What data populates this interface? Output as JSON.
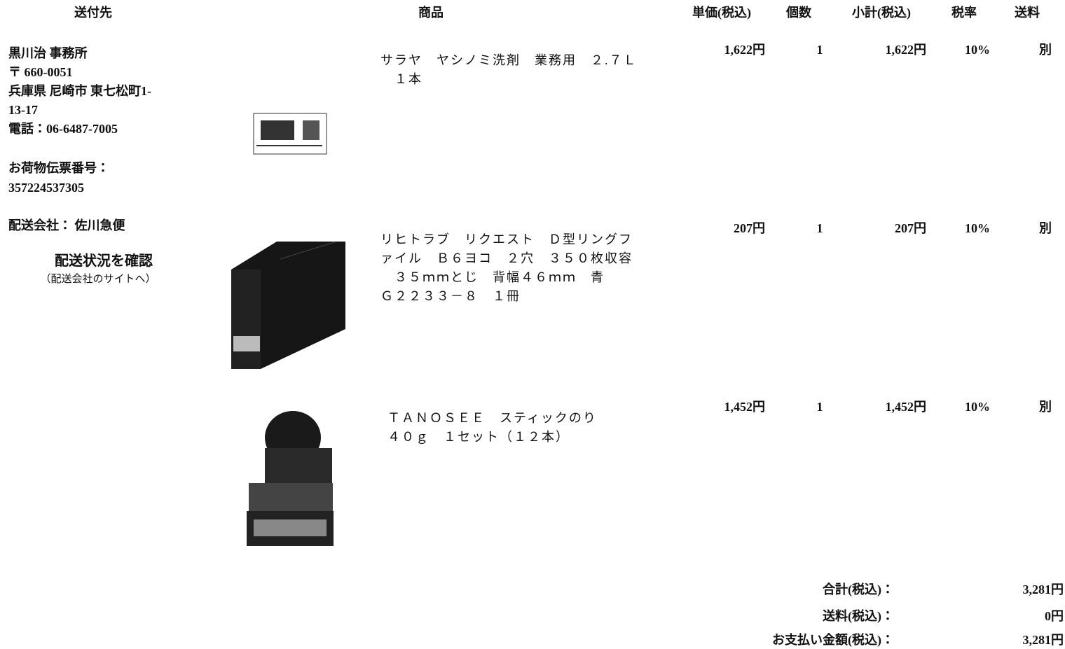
{
  "header": [
    "送付先",
    "商品",
    "単価(税込)",
    "個数",
    "小計(税込)",
    "税率",
    "送料"
  ],
  "recipient": {
    "lines": [
      "黒川治 事務所",
      "〒 660-0051",
      "兵庫県 尼崎市 東七松町1-",
      "13-17",
      "電話：06-6487-7005"
    ],
    "tracking_label": "お荷物伝票番号：",
    "tracking_number": "357224537305",
    "carrier": "配送会社： 佐川急便",
    "status_link": "配送状況を確認",
    "status_note": "（配送会社のサイトへ）"
  },
  "items": [
    {
      "name_lines": [
        "サラヤ　ヤシノミ洗剤　業務用　２.７Ｌ",
        "　１本"
      ],
      "unit_price": "1,622円",
      "quantity": "1",
      "subtotal": "1,622円",
      "tax_rate": "10%",
      "shipping": "別"
    },
    {
      "name_lines": [
        "リヒトラブ　リクエスト　Ｄ型リングフ",
        "ァイル　Ｂ６ヨコ　２穴　３５０枚収容",
        "　３５ｍｍとじ　背幅４６ｍｍ　青",
        "Ｇ２２３３－８　１冊"
      ],
      "unit_price": "207円",
      "quantity": "1",
      "subtotal": "207円",
      "tax_rate": "10%",
      "shipping": "別"
    },
    {
      "name_lines": [
        "ＴＡＮＯＳＥＥ　スティックのり",
        "４０ｇ　１セット（１２本）"
      ],
      "unit_price": "1,452円",
      "quantity": "1",
      "subtotal": "1,452円",
      "tax_rate": "10%",
      "shipping": "別"
    }
  ],
  "totals": [
    {
      "label": "合計(税込)：",
      "value": "3,281円"
    },
    {
      "label": "送料(税込)：",
      "value": "0円"
    },
    {
      "label": "お支払い金額(税込)：",
      "value": "3,281円"
    }
  ]
}
